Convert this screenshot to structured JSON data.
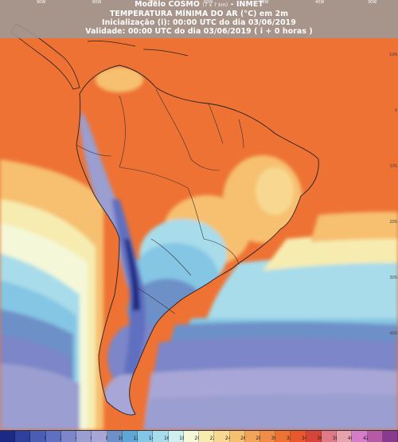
{
  "map": {
    "title_line1": "Modelo COSMO",
    "title_res": "(7 x 7 km)",
    "title_org": "- INMET",
    "title_line2": "TEMPERATURA MÍNIMA DO AR (°C) em 2m",
    "title_line3": "Inicialização (i): 00:00 UTC do dia 03/06/2019",
    "title_line4": "Validade: 00:00 UTC do dia 03/06/2019 ( i + 0 horas )"
  },
  "longitude_labels": [
    "90W",
    "80W",
    "70W",
    "60W",
    "50W",
    "40W",
    "30W"
  ],
  "latitude_labels": [
    "10N",
    "0",
    "10S",
    "20S",
    "30S",
    "40S"
  ],
  "colorbar": {
    "colors": [
      "#1c2a86",
      "#2f3f9c",
      "#4a5cb4",
      "#6070c0",
      "#7c86c8",
      "#9a9ed0",
      "#a8a6d6",
      "#6e90c8",
      "#5ea6d8",
      "#84c6e4",
      "#a8dcea",
      "#cfeef0",
      "#f4f8d8",
      "#f6ecb0",
      "#f8d890",
      "#f6c070",
      "#f4a458",
      "#f08c48",
      "#ee7234",
      "#e8582c",
      "#d8443a",
      "#e07a86",
      "#e8a2ae",
      "#d67cc8",
      "#b65aa8",
      "#8a3a8e"
    ],
    "labels": [
      "-4",
      "-2",
      "0",
      "2",
      "4",
      "6",
      "8",
      "10",
      "12",
      "14",
      "16",
      "18",
      "20",
      "22",
      "24",
      "26",
      "28",
      "30",
      "32",
      "34",
      "36",
      "38",
      "40",
      "42"
    ]
  }
}
